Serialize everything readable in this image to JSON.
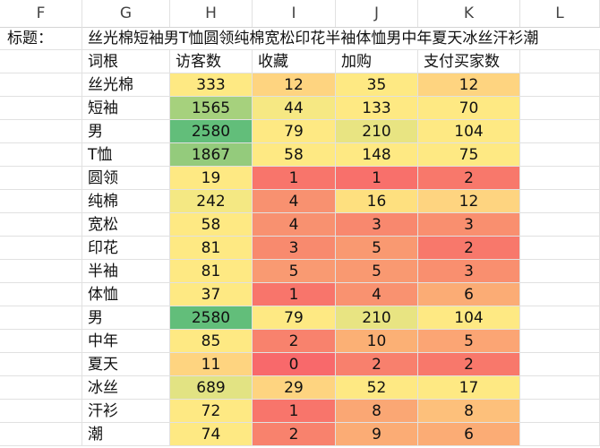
{
  "columns": [
    "F",
    "G",
    "H",
    "I",
    "J",
    "K",
    "L"
  ],
  "title_label": "标题：",
  "title_text": "丝光棉短袖男T恤圆领纯棉宽松印花半袖体恤男中年夏天冰丝汗衫潮",
  "headers": [
    "词根",
    "访客数",
    "收藏",
    "加购",
    "支付买家数"
  ],
  "rows": [
    {
      "word": "丝光棉",
      "visitors": "333",
      "fav": "12",
      "cart": "35",
      "buyers": "12"
    },
    {
      "word": "短袖",
      "visitors": "1565",
      "fav": "44",
      "cart": "133",
      "buyers": "70"
    },
    {
      "word": "男",
      "visitors": "2580",
      "fav": "79",
      "cart": "210",
      "buyers": "104"
    },
    {
      "word": "T恤",
      "visitors": "1867",
      "fav": "58",
      "cart": "148",
      "buyers": "75"
    },
    {
      "word": "圆领",
      "visitors": "19",
      "fav": "1",
      "cart": "1",
      "buyers": "2"
    },
    {
      "word": "纯棉",
      "visitors": "242",
      "fav": "4",
      "cart": "16",
      "buyers": "12"
    },
    {
      "word": "宽松",
      "visitors": "58",
      "fav": "4",
      "cart": "3",
      "buyers": "3"
    },
    {
      "word": "印花",
      "visitors": "81",
      "fav": "3",
      "cart": "5",
      "buyers": "2"
    },
    {
      "word": "半袖",
      "visitors": "81",
      "fav": "5",
      "cart": "5",
      "buyers": "3"
    },
    {
      "word": "体恤",
      "visitors": "37",
      "fav": "1",
      "cart": "4",
      "buyers": "6"
    },
    {
      "word": "男",
      "visitors": "2580",
      "fav": "79",
      "cart": "210",
      "buyers": "104"
    },
    {
      "word": "中年",
      "visitors": "85",
      "fav": "2",
      "cart": "10",
      "buyers": "5"
    },
    {
      "word": "夏天",
      "visitors": "11",
      "fav": "0",
      "cart": "2",
      "buyers": "2"
    },
    {
      "word": "冰丝",
      "visitors": "689",
      "fav": "29",
      "cart": "52",
      "buyers": "17"
    },
    {
      "word": "汗衫",
      "visitors": "72",
      "fav": "1",
      "cart": "8",
      "buyers": "8"
    },
    {
      "word": "潮",
      "visitors": "74",
      "fav": "2",
      "cart": "9",
      "buyers": "6"
    }
  ],
  "colors": {
    "visitors": [
      "#fee983",
      "#a6d17d",
      "#62be7a",
      "#94cb7c",
      "#fee983",
      "#f4e883",
      "#fee983",
      "#fee983",
      "#fee983",
      "#fee983",
      "#62be7a",
      "#fee983",
      "#fed480",
      "#e2e383",
      "#fee983",
      "#fee983"
    ],
    "fav": [
      "#fed480",
      "#f6e883",
      "#fee983",
      "#fee983",
      "#f8756b",
      "#f89170",
      "#f89170",
      "#f88a6e",
      "#f99a72",
      "#f8756b",
      "#fee983",
      "#f8826d",
      "#f8696b",
      "#fed480",
      "#f8756b",
      "#f8826d"
    ],
    "cart": [
      "#fee983",
      "#fee983",
      "#e8e482",
      "#fee983",
      "#f8706b",
      "#fee07f",
      "#f8886e",
      "#f99971",
      "#f99971",
      "#f99270",
      "#e8e482",
      "#fbb075",
      "#f8806d",
      "#fee983",
      "#faa774",
      "#fbac75"
    ],
    "buyers": [
      "#fed480",
      "#fee983",
      "#fee983",
      "#fee983",
      "#f8786b",
      "#fed480",
      "#f98f6f",
      "#f8786b",
      "#f98f6f",
      "#fbac75",
      "#fee983",
      "#fba574",
      "#f8786b",
      "#fee983",
      "#fdc07b",
      "#fbac75"
    ]
  }
}
